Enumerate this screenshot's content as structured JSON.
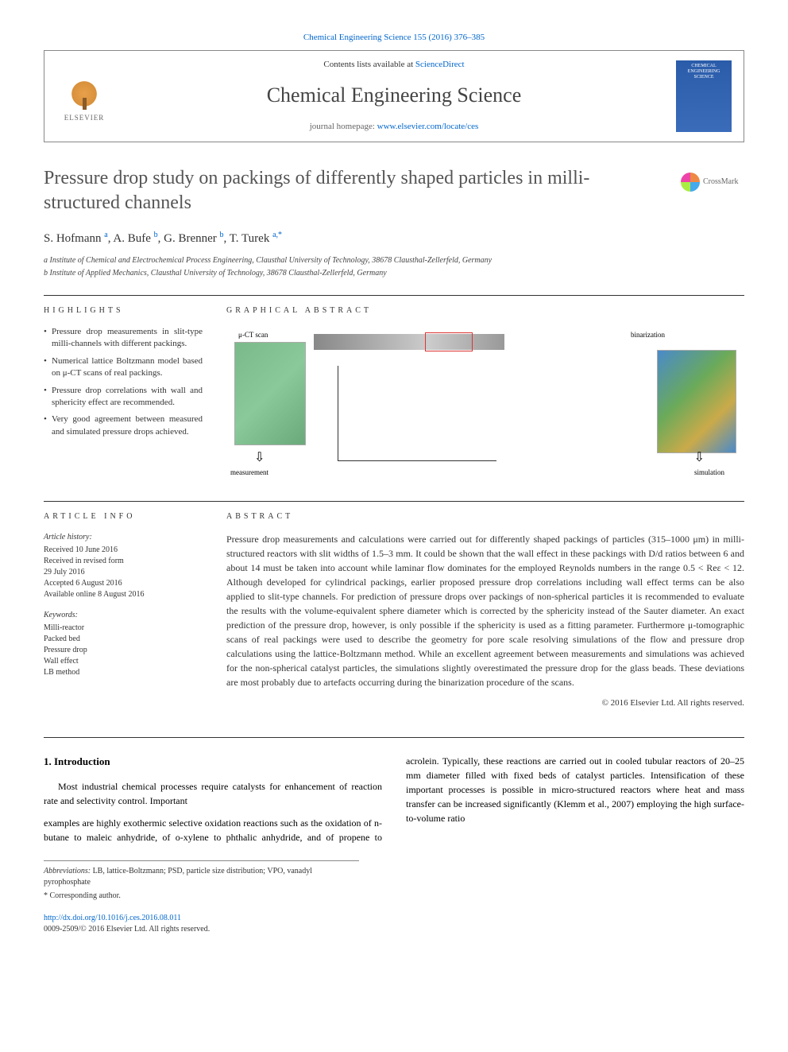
{
  "journal_ref": "Chemical Engineering Science 155 (2016) 376–385",
  "header": {
    "contents_prefix": "Contents lists available at ",
    "contents_link": "ScienceDirect",
    "journal_name": "Chemical Engineering Science",
    "homepage_prefix": "journal homepage: ",
    "homepage_link": "www.elsevier.com/locate/ces",
    "publisher": "ELSEVIER",
    "cover_text": "CHEMICAL ENGINEERING SCIENCE"
  },
  "crossmark": "CrossMark",
  "title": "Pressure drop study on packings of differently shaped particles in milli-structured channels",
  "authors_html": "S. Hofmann <sup>a</sup>, A. Bufe <sup>b</sup>, G. Brenner <sup>b</sup>, T. Turek <sup>a,*</sup>",
  "affiliations": [
    "a Institute of Chemical and Electrochemical Process Engineering, Clausthal University of Technology, 38678 Clausthal-Zellerfeld, Germany",
    "b Institute of Applied Mechanics, Clausthal University of Technology, 38678 Clausthal-Zellerfeld, Germany"
  ],
  "highlights_label": "HIGHLIGHTS",
  "highlights": [
    "Pressure drop measurements in slit-type milli-channels with different packings.",
    "Numerical lattice Boltzmann model based on μ-CT scans of real packings.",
    "Pressure drop correlations with wall and sphericity effect are recommended.",
    "Very good agreement between measured and simulated pressure drops achieved."
  ],
  "graphical_label": "GRAPHICAL ABSTRACT",
  "ga": {
    "scan_label": "μ-CT scan",
    "bin_label": "binarization",
    "meas_label": "measurement",
    "sim_label": "simulation"
  },
  "article_info_label": "ARTICLE INFO",
  "article_history_label": "Article history:",
  "article_history": [
    "Received 10 June 2016",
    "Received in revised form",
    "29 July 2016",
    "Accepted 6 August 2016",
    "Available online 8 August 2016"
  ],
  "keywords_label": "Keywords:",
  "keywords": [
    "Milli-reactor",
    "Packed bed",
    "Pressure drop",
    "Wall effect",
    "LB method"
  ],
  "abstract_label": "ABSTRACT",
  "abstract": "Pressure drop measurements and calculations were carried out for differently shaped packings of particles (315–1000 μm) in milli-structured reactors with slit widths of 1.5–3 mm. It could be shown that the wall effect in these packings with D/d ratios between 6 and about 14 must be taken into account while laminar flow dominates for the employed Reynolds numbers in the range 0.5 < Reε < 12. Although developed for cylindrical packings, earlier proposed pressure drop correlations including wall effect terms can be also applied to slit-type channels. For prediction of pressure drops over packings of non-spherical particles it is recommended to evaluate the results with the volume-equivalent sphere diameter which is corrected by the sphericity instead of the Sauter diameter. An exact prediction of the pressure drop, however, is only possible if the sphericity is used as a fitting parameter. Furthermore μ-tomographic scans of real packings were used to describe the geometry for pore scale resolving simulations of the flow and pressure drop calculations using the lattice-Boltzmann method. While an excellent agreement between measurements and simulations was achieved for the non-spherical catalyst particles, the simulations slightly overestimated the pressure drop for the glass beads. These deviations are most probably due to artefacts occurring during the binarization procedure of the scans.",
  "copyright": "© 2016 Elsevier Ltd. All rights reserved.",
  "intro_title": "1. Introduction",
  "intro_p1": "Most industrial chemical processes require catalysts for enhancement of reaction rate and selectivity control. Important",
  "intro_p2": "examples are highly exothermic selective oxidation reactions such as the oxidation of n-butane to maleic anhydride, of o-xylene to phthalic anhydride, and of propene to acrolein. Typically, these reactions are carried out in cooled tubular reactors of 20–25 mm diameter filled with fixed beds of catalyst particles. Intensification of these important processes is possible in micro-structured reactors where heat and mass transfer can be increased significantly (Klemm et al., 2007) employing the high surface-to-volume ratio",
  "footnotes": {
    "abbrev_label": "Abbreviations:",
    "abbrev": " LB, lattice-Boltzmann; PSD, particle size distribution; VPO, vanadyl pyrophosphate",
    "corr": "* Corresponding author."
  },
  "footer": {
    "doi": "http://dx.doi.org/10.1016/j.ces.2016.08.011",
    "issn": "0009-2509/© 2016 Elsevier Ltd. All rights reserved."
  },
  "colors": {
    "link": "#0066cc",
    "text": "#333333",
    "title_grey": "#555555"
  }
}
